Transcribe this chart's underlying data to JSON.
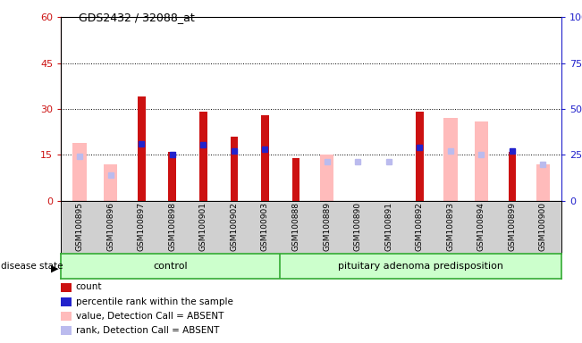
{
  "title": "GDS2432 / 32088_at",
  "samples": [
    "GSM100895",
    "GSM100896",
    "GSM100897",
    "GSM100898",
    "GSM100901",
    "GSM100902",
    "GSM100903",
    "GSM100888",
    "GSM100889",
    "GSM100890",
    "GSM100891",
    "GSM100892",
    "GSM100893",
    "GSM100894",
    "GSM100899",
    "GSM100900"
  ],
  "count": [
    null,
    null,
    34,
    16,
    29,
    21,
    28,
    14,
    null,
    null,
    null,
    29,
    null,
    null,
    16,
    null
  ],
  "percentile_rank": [
    null,
    null,
    31.0,
    25.0,
    30.5,
    27.0,
    28.0,
    null,
    null,
    null,
    null,
    29.0,
    null,
    null,
    27.0,
    null
  ],
  "value_absent": [
    19,
    12,
    null,
    null,
    null,
    null,
    null,
    null,
    15,
    null,
    null,
    null,
    27,
    26,
    null,
    12
  ],
  "rank_absent": [
    24,
    14,
    null,
    null,
    null,
    null,
    null,
    null,
    21,
    21,
    21,
    null,
    27,
    25,
    null,
    20
  ],
  "ylim_left": [
    0,
    60
  ],
  "ylim_right": [
    0,
    100
  ],
  "yticks_left": [
    0,
    15,
    30,
    45,
    60
  ],
  "yticks_right": [
    0,
    25,
    50,
    75,
    100
  ],
  "color_count": "#cc1111",
  "color_percentile": "#2222cc",
  "color_value_absent": "#ffbbbb",
  "color_rank_absent": "#bbbbee",
  "n_control": 7,
  "n_pituitary": 9,
  "legend_labels": [
    "count",
    "percentile rank within the sample",
    "value, Detection Call = ABSENT",
    "rank, Detection Call = ABSENT"
  ],
  "legend_colors": [
    "#cc1111",
    "#2222cc",
    "#ffbbbb",
    "#bbbbee"
  ]
}
